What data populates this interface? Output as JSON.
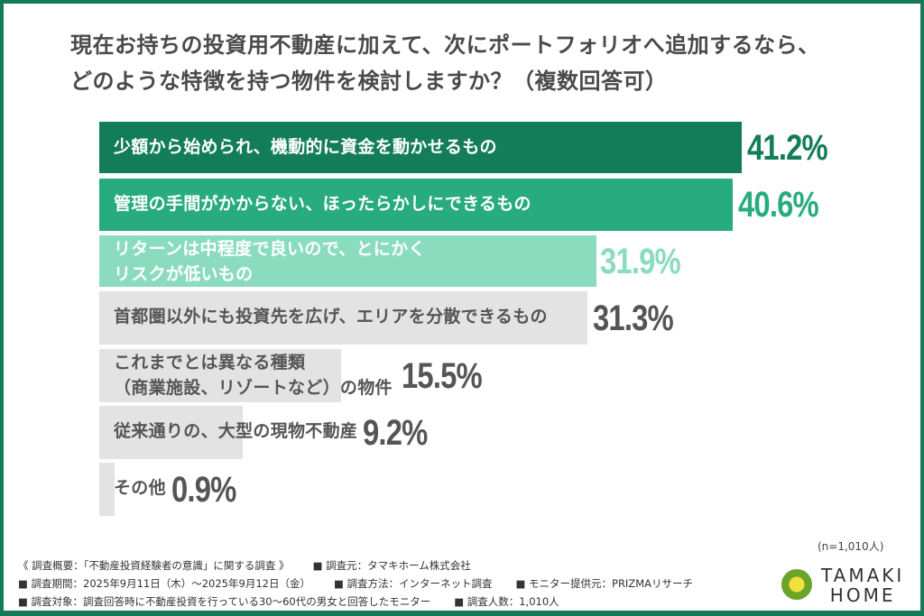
{
  "title": {
    "line1": "現在お持ちの投資用不動産に加えて、次にポートフォリオへ追加するなら、",
    "line2": "どのような特徴を持つ物件を検討しますか？（複数回答可）"
  },
  "chart_data": {
    "type": "bar",
    "orientation": "horizontal",
    "title": "現在お持ちの投資用不動産に加えて、次にポートフォリオへ追加するなら、どのような特徴を持つ物件を検討しますか？（複数回答可）",
    "categories": [
      "少額から始められ、機動的に資金を動かせるもの",
      "管理の手間がかからない、ほったらかしにできるもの",
      "リターンは中程度で良いので、とにかくリスクが低いもの",
      "首都圏以外にも投資先を広げ、エリアを分散できるもの",
      "これまでとは異なる種類（商業施設、リゾートなど）の物件",
      "従来通りの、大型の現物不動産",
      "その他"
    ],
    "values": [
      41.2,
      40.6,
      31.9,
      31.3,
      15.5,
      9.2,
      0.9
    ],
    "unit": "%",
    "xlabel": "",
    "ylabel": "",
    "grid": false,
    "legend": null,
    "sample_note": "(n=1,010人)"
  },
  "bars": [
    {
      "label_lines": [
        "少額から始められ、機動的に資金を動かせるもの"
      ],
      "pct": "41.2%",
      "color": "#137d5a",
      "text_color": "#ffffff",
      "pct_color": "#137d5a"
    },
    {
      "label_lines": [
        "管理の手間がかからない、ほったらかしにできるもの"
      ],
      "pct": "40.6%",
      "color": "#27ab7f",
      "text_color": "#ffffff",
      "pct_color": "#27ab7f"
    },
    {
      "label_lines": [
        "リターンは中程度で良いので、とにかく",
        "リスクが低いもの"
      ],
      "pct": "31.9%",
      "color": "#8bdcbf",
      "text_color": "#ffffff",
      "pct_color": "#8bdcbf"
    },
    {
      "label_lines": [
        "首都圏以外にも投資先を広げ、エリアを分散できるもの"
      ],
      "pct": "31.3%",
      "color": "#e3e3e3",
      "text_color": "#555555",
      "pct_color": "#555555"
    },
    {
      "label_lines": [
        "これまでとは異なる種類",
        "（商業施設、リゾートなど）の物件"
      ],
      "pct": "15.5%",
      "color": "#e3e3e3",
      "text_color": "#555555",
      "pct_color": "#555555"
    },
    {
      "label_lines": [
        "従来通りの、大型の現物不動産"
      ],
      "pct": "9.2%",
      "color": "#e3e3e3",
      "text_color": "#555555",
      "pct_color": "#555555"
    },
    {
      "label_lines": [
        "その他"
      ],
      "pct": "0.9%",
      "color": "#e3e3e3",
      "text_color": "#555555",
      "pct_color": "#555555"
    }
  ],
  "sample_note": "(n=1,010人)",
  "footer": {
    "row1": [
      "《 調査概要：「不動産投資経験者の意識」に関する調査 》",
      "■ 調査元：タマキホーム株式会社"
    ],
    "row2": [
      "■ 調査期間：2025年9月11日（木）～2025年9月12日（金）",
      "■ 調査方法：インターネット調査",
      "■ モニター提供元：PRIZMAリサーチ"
    ],
    "row3": [
      "■ 調査対象：調査回答時に不動産投資を行っている30～60代の男女と回答したモニター",
      "■ 調査人数：1,010人"
    ]
  },
  "logo": {
    "line1": "TAMAKI",
    "line2": "HOME"
  },
  "colors": {
    "frame": "#147a57",
    "dark_green": "#137d5a",
    "mid_green": "#27ab7f",
    "light_green": "#8bdcbf",
    "gray_bar": "#e3e3e3"
  }
}
